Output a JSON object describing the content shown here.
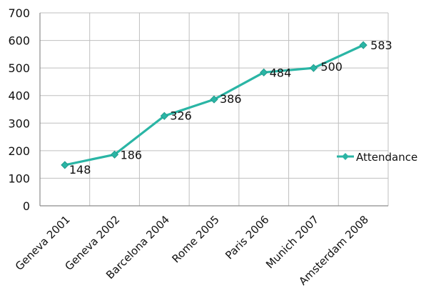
{
  "chart_data": {
    "type": "line",
    "title": "",
    "xlabel": "",
    "ylabel": "",
    "categories": [
      "Geneva 2001",
      "Geneva 2002",
      "Barcelona 2004",
      "Rome 2005",
      "Paris 2006",
      "Munich 2007",
      "Amsterdam 2008"
    ],
    "series": [
      {
        "name": "Attendance",
        "values": [
          148,
          186,
          326,
          386,
          484,
          500,
          583
        ],
        "color": "#2ab5a5"
      }
    ],
    "data_labels": [
      "148",
      "186",
      "326",
      "386",
      "484",
      "500",
      "583"
    ],
    "ylim": [
      0,
      700
    ],
    "yticks": [
      "0",
      "100",
      "200",
      "300",
      "400",
      "500",
      "600",
      "700"
    ],
    "grid": true,
    "legend_position": "right"
  }
}
